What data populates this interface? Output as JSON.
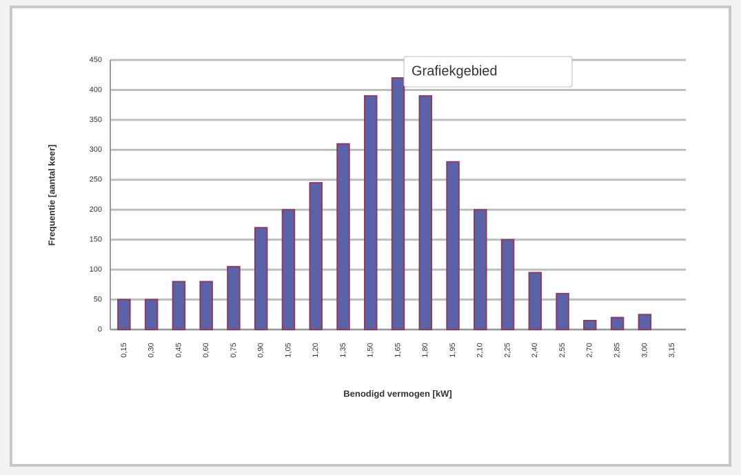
{
  "chart_data": {
    "type": "bar",
    "tooltip": "Grafiekgebied",
    "x_label": "Benodigd vermogen [kW]",
    "y_label": "Frequentie [aantal keer]",
    "categories": [
      "0,15",
      "0,30",
      "0,45",
      "0,60",
      "0,75",
      "0,90",
      "1,05",
      "1,20",
      "1,35",
      "1,50",
      "1,65",
      "1,80",
      "1,95",
      "2,10",
      "2,25",
      "2,40",
      "2,55",
      "2,70",
      "2,85",
      "3,00",
      "3,15"
    ],
    "values": [
      50,
      50,
      80,
      80,
      105,
      170,
      200,
      245,
      310,
      390,
      420,
      390,
      280,
      200,
      150,
      95,
      60,
      15,
      20,
      25,
      0
    ],
    "color": "#5a62a8",
    "edge_color": "#8e3b5e",
    "ylim": [
      0,
      450
    ],
    "yticks": [
      0,
      50,
      100,
      150,
      200,
      250,
      300,
      350,
      400,
      450
    ],
    "grid": true
  }
}
